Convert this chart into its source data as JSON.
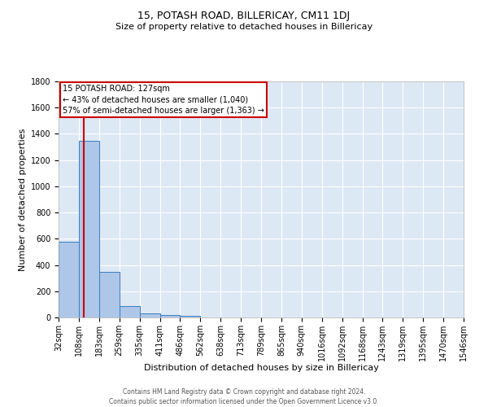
{
  "title1": "15, POTASH ROAD, BILLERICAY, CM11 1DJ",
  "title2": "Size of property relative to detached houses in Billericay",
  "xlabel": "Distribution of detached houses by size in Billericay",
  "ylabel": "Number of detached properties",
  "footer1": "Contains HM Land Registry data © Crown copyright and database right 2024.",
  "footer2": "Contains public sector information licensed under the Open Government Licence v3.0.",
  "annotation_title": "15 POTASH ROAD: 127sqm",
  "annotation_line1": "← 43% of detached houses are smaller (1,040)",
  "annotation_line2": "57% of semi-detached houses are larger (1,363) →",
  "property_size": 127,
  "bar_edges": [
    32,
    108,
    183,
    259,
    335,
    411,
    486,
    562,
    638,
    713,
    789,
    865,
    940,
    1016,
    1092,
    1168,
    1243,
    1319,
    1395,
    1470,
    1546
  ],
  "bar_heights": [
    575,
    1350,
    350,
    90,
    30,
    20,
    15,
    0,
    0,
    0,
    0,
    0,
    0,
    0,
    0,
    0,
    0,
    0,
    0,
    0
  ],
  "bar_color": "#aec6e8",
  "bar_edge_color": "#3a7ebf",
  "vline_color": "#cc0000",
  "vline_x": 127,
  "ylim": [
    0,
    1800
  ],
  "yticks": [
    0,
    200,
    400,
    600,
    800,
    1000,
    1200,
    1400,
    1600,
    1800
  ],
  "bg_color": "#dde8f5",
  "grid_color": "white",
  "annotation_box_color": "white",
  "annotation_box_edge": "#cc0000",
  "title1_fontsize": 9,
  "title2_fontsize": 8,
  "xlabel_fontsize": 8,
  "ylabel_fontsize": 8,
  "tick_fontsize": 7,
  "ann_fontsize": 7,
  "footer_fontsize": 5.5
}
